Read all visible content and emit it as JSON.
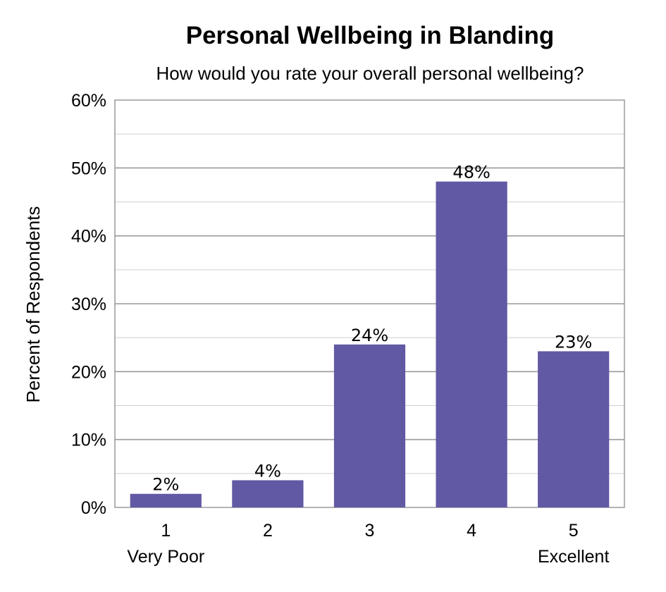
{
  "chart_data": {
    "type": "bar",
    "title": "Personal Wellbeing in Blanding",
    "subtitle": "How would you rate your overall personal wellbeing?",
    "xlabel": "",
    "ylabel": "Percent of Respondents",
    "categories": [
      "1",
      "2",
      "3",
      "4",
      "5"
    ],
    "category_sublabels": [
      "Very Poor",
      "",
      "",
      "",
      "Excellent"
    ],
    "values": [
      2,
      4,
      24,
      48,
      23
    ],
    "data_labels": [
      "2%",
      "4%",
      "24%",
      "48%",
      "23%"
    ],
    "ylim": [
      0,
      60
    ],
    "yticks": [
      0,
      10,
      20,
      30,
      40,
      50,
      60
    ],
    "ytick_labels": [
      "0%",
      "10%",
      "20%",
      "30%",
      "40%",
      "50%",
      "60%"
    ],
    "grid": true,
    "legend": "none",
    "bar_color": "#6159A3"
  }
}
